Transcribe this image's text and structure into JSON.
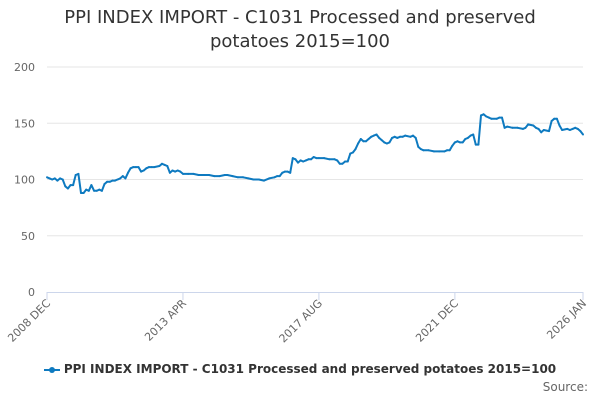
{
  "chart_data": {
    "type": "line",
    "title_lines": [
      "PPI INDEX IMPORT - C1031 Processed and preserved",
      "potatoes 2015=100"
    ],
    "ylim": [
      0,
      200
    ],
    "yticks": [
      0,
      50,
      100,
      150,
      200
    ],
    "xlim": [
      2008.917,
      2026.0
    ],
    "xticks": [
      {
        "label": "2008 DEC",
        "x": 2008.917
      },
      {
        "label": "2013 APR",
        "x": 2013.25
      },
      {
        "label": "2017 AUG",
        "x": 2017.583
      },
      {
        "label": "2021 DEC",
        "x": 2021.917
      },
      {
        "label": "2026 JAN",
        "x": 2026.0
      }
    ],
    "grid": true,
    "legend_position": "bottom",
    "source_label": "Source:",
    "series": [
      {
        "name": "PPI INDEX IMPORT - C1031 Processed and preserved potatoes 2015=100",
        "color": "#0e7ac0",
        "points": [
          [
            2008.917,
            102
          ],
          [
            2009.0,
            101
          ],
          [
            2009.083,
            100
          ],
          [
            2009.167,
            101
          ],
          [
            2009.25,
            99
          ],
          [
            2009.333,
            101
          ],
          [
            2009.417,
            100
          ],
          [
            2009.5,
            94
          ],
          [
            2009.583,
            92
          ],
          [
            2009.667,
            95
          ],
          [
            2009.75,
            95
          ],
          [
            2009.833,
            104
          ],
          [
            2009.917,
            105
          ],
          [
            2010.0,
            88
          ],
          [
            2010.083,
            88
          ],
          [
            2010.167,
            91
          ],
          [
            2010.25,
            90
          ],
          [
            2010.333,
            95
          ],
          [
            2010.417,
            90
          ],
          [
            2010.5,
            90
          ],
          [
            2010.583,
            91
          ],
          [
            2010.667,
            90
          ],
          [
            2010.75,
            96
          ],
          [
            2010.833,
            98
          ],
          [
            2010.917,
            98
          ],
          [
            2011.0,
            99
          ],
          [
            2011.083,
            99
          ],
          [
            2011.167,
            100
          ],
          [
            2011.25,
            101
          ],
          [
            2011.333,
            103
          ],
          [
            2011.417,
            101
          ],
          [
            2011.5,
            106
          ],
          [
            2011.583,
            110
          ],
          [
            2011.667,
            111
          ],
          [
            2011.75,
            111
          ],
          [
            2011.833,
            111
          ],
          [
            2011.917,
            107
          ],
          [
            2012.0,
            108
          ],
          [
            2012.083,
            110
          ],
          [
            2012.167,
            111
          ],
          [
            2012.25,
            111
          ],
          [
            2012.333,
            111
          ],
          [
            2012.5,
            112
          ],
          [
            2012.583,
            114
          ],
          [
            2012.667,
            113
          ],
          [
            2012.75,
            112
          ],
          [
            2012.833,
            106
          ],
          [
            2012.917,
            108
          ],
          [
            2013.0,
            107
          ],
          [
            2013.083,
            108
          ],
          [
            2013.167,
            107
          ],
          [
            2013.25,
            105
          ],
          [
            2013.417,
            105
          ],
          [
            2013.583,
            105
          ],
          [
            2013.75,
            104
          ],
          [
            2013.917,
            104
          ],
          [
            2014.083,
            104
          ],
          [
            2014.25,
            103
          ],
          [
            2014.417,
            103
          ],
          [
            2014.583,
            104
          ],
          [
            2014.667,
            104
          ],
          [
            2014.833,
            103
          ],
          [
            2015.0,
            102
          ],
          [
            2015.167,
            102
          ],
          [
            2015.333,
            101
          ],
          [
            2015.5,
            100
          ],
          [
            2015.667,
            100
          ],
          [
            2015.833,
            99
          ],
          [
            2016.0,
            101
          ],
          [
            2016.167,
            102
          ],
          [
            2016.25,
            103
          ],
          [
            2016.333,
            103
          ],
          [
            2016.417,
            106
          ],
          [
            2016.5,
            107
          ],
          [
            2016.583,
            107
          ],
          [
            2016.667,
            106
          ],
          [
            2016.75,
            119
          ],
          [
            2016.833,
            118
          ],
          [
            2016.917,
            115
          ],
          [
            2017.0,
            117
          ],
          [
            2017.083,
            116
          ],
          [
            2017.167,
            117
          ],
          [
            2017.25,
            118
          ],
          [
            2017.333,
            118
          ],
          [
            2017.417,
            120
          ],
          [
            2017.5,
            119
          ],
          [
            2017.583,
            119
          ],
          [
            2017.75,
            119
          ],
          [
            2017.917,
            118
          ],
          [
            2018.083,
            118
          ],
          [
            2018.167,
            117
          ],
          [
            2018.25,
            114
          ],
          [
            2018.333,
            114
          ],
          [
            2018.417,
            116
          ],
          [
            2018.5,
            116
          ],
          [
            2018.583,
            123
          ],
          [
            2018.667,
            124
          ],
          [
            2018.75,
            127
          ],
          [
            2018.833,
            132
          ],
          [
            2018.917,
            136
          ],
          [
            2019.0,
            134
          ],
          [
            2019.083,
            134
          ],
          [
            2019.167,
            136
          ],
          [
            2019.25,
            138
          ],
          [
            2019.333,
            139
          ],
          [
            2019.417,
            140
          ],
          [
            2019.5,
            137
          ],
          [
            2019.583,
            135
          ],
          [
            2019.667,
            133
          ],
          [
            2019.75,
            132
          ],
          [
            2019.833,
            133
          ],
          [
            2019.917,
            137
          ],
          [
            2020.0,
            138
          ],
          [
            2020.083,
            137
          ],
          [
            2020.167,
            138
          ],
          [
            2020.25,
            138
          ],
          [
            2020.333,
            139
          ],
          [
            2020.5,
            138
          ],
          [
            2020.583,
            139
          ],
          [
            2020.667,
            137
          ],
          [
            2020.75,
            129
          ],
          [
            2020.833,
            127
          ],
          [
            2020.917,
            126
          ],
          [
            2021.083,
            126
          ],
          [
            2021.25,
            125
          ],
          [
            2021.417,
            125
          ],
          [
            2021.583,
            125
          ],
          [
            2021.667,
            126
          ],
          [
            2021.75,
            126
          ],
          [
            2021.833,
            130
          ],
          [
            2021.917,
            133
          ],
          [
            2022.0,
            134
          ],
          [
            2022.083,
            133
          ],
          [
            2022.167,
            133
          ],
          [
            2022.25,
            136
          ],
          [
            2022.333,
            137
          ],
          [
            2022.417,
            139
          ],
          [
            2022.5,
            140
          ],
          [
            2022.583,
            131
          ],
          [
            2022.667,
            131
          ],
          [
            2022.75,
            157
          ],
          [
            2022.833,
            158
          ],
          [
            2022.917,
            156
          ],
          [
            2023.0,
            155
          ],
          [
            2023.083,
            154
          ],
          [
            2023.25,
            154
          ],
          [
            2023.333,
            155
          ],
          [
            2023.417,
            155
          ],
          [
            2023.5,
            146
          ],
          [
            2023.583,
            147
          ],
          [
            2023.75,
            146
          ],
          [
            2023.917,
            146
          ],
          [
            2024.083,
            145
          ],
          [
            2024.167,
            146
          ],
          [
            2024.25,
            149
          ],
          [
            2024.417,
            148
          ],
          [
            2024.5,
            146
          ],
          [
            2024.583,
            145
          ],
          [
            2024.667,
            142
          ],
          [
            2024.75,
            144
          ],
          [
            2024.917,
            143
          ],
          [
            2025.0,
            152
          ],
          [
            2025.083,
            154
          ],
          [
            2025.167,
            154
          ],
          [
            2025.25,
            148
          ],
          [
            2025.333,
            144
          ],
          [
            2025.5,
            145
          ],
          [
            2025.583,
            144
          ],
          [
            2025.667,
            145
          ],
          [
            2025.75,
            146
          ],
          [
            2025.833,
            145
          ],
          [
            2025.917,
            143
          ],
          [
            2026.0,
            140
          ]
        ]
      }
    ]
  }
}
